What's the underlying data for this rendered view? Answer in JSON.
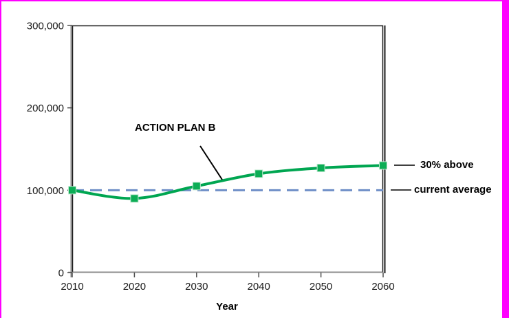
{
  "colors": {
    "frame_border": "#FF00FF",
    "series_green": "#00A651",
    "marker_green": "#0CAD55",
    "reference_blue": "#6E8FC7",
    "plot_border": "#1a1a1a",
    "axis_gray": "#8c8c8c",
    "tick_text": "#1a1a1a",
    "annotation_black": "#000000"
  },
  "chart_data": {
    "type": "line",
    "title": "",
    "xlabel": "Year",
    "ylabel": "",
    "x": [
      2010,
      2020,
      2030,
      2040,
      2050,
      2060
    ],
    "series": [
      {
        "name": "ACTION PLAN B",
        "values": [
          100000,
          90000,
          105000,
          120000,
          127000,
          130000
        ],
        "color": "#00A651",
        "marker": "square",
        "line_style": "smooth-solid"
      }
    ],
    "reference_line": {
      "label": "current average",
      "value": 100000,
      "color": "#6E8FC7",
      "style": "dashed"
    },
    "xlim": [
      2010,
      2060
    ],
    "ylim": [
      0,
      300000
    ],
    "xticks": [
      "2010",
      "2020",
      "2030",
      "2040",
      "2050",
      "2060"
    ],
    "yticks": [
      0,
      100000,
      200000,
      300000
    ],
    "ytick_labels": [
      "0",
      "100,000",
      "200,000",
      "300,000"
    ],
    "grid": false,
    "legend": "none",
    "annotations": [
      {
        "text": "ACTION PLAN B",
        "points_to": "series line between 2030 and 2040"
      },
      {
        "text": "30% above",
        "points_to": "series end value at 2060 (130,000)"
      },
      {
        "text": "current average",
        "points_to": "dashed reference line at 100,000"
      }
    ]
  }
}
